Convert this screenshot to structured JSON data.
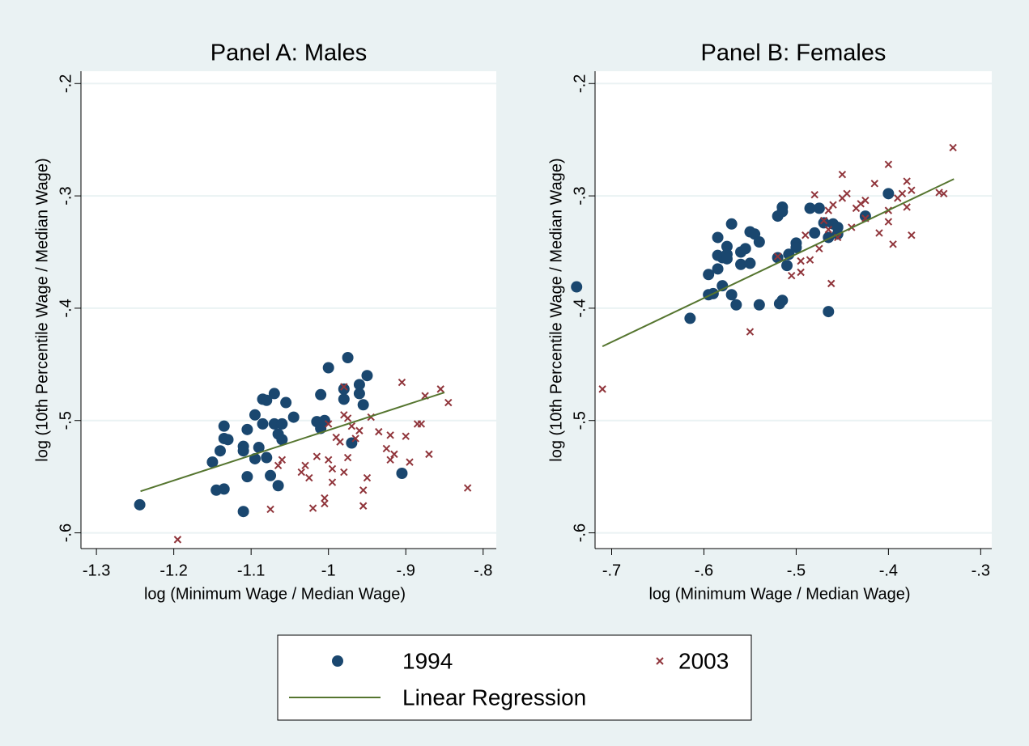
{
  "chart_data": [
    {
      "type": "scatter",
      "title": "Panel A: Males",
      "xlabel": "log (Minimum Wage / Median Wage)",
      "ylabel": "log (10th Percentile Wage / Median Wage)",
      "xlim": [
        -1.32,
        -0.783
      ],
      "ylim": [
        -0.614,
        -0.189
      ],
      "xticks": [
        -1.3,
        -1.2,
        -1.1,
        -1,
        {
          "value": -0.9,
          "label": "-.9"
        },
        {
          "value": -0.8,
          "label": "-.8"
        }
      ],
      "yticks": [
        {
          "value": -0.2,
          "label": "-.2"
        },
        {
          "value": -0.3,
          "label": "-.3"
        },
        {
          "value": -0.4,
          "label": "-.4"
        },
        {
          "value": -0.5,
          "label": "-.5"
        },
        {
          "value": -0.6,
          "label": "-.6"
        }
      ],
      "grid": true,
      "legend": "bottom",
      "series": [
        {
          "name": "1994",
          "color": "#1a476f",
          "marker": "circle",
          "x": [
            -1.244,
            -1.15,
            -1.14,
            -1.145,
            -1.135,
            -1.135,
            -1.13,
            -1.135,
            -1.11,
            -1.11,
            -1.11,
            -1.105,
            -1.105,
            -1.095,
            -1.095,
            -1.09,
            -1.085,
            -1.085,
            -1.08,
            -1.08,
            -1.075,
            -1.07,
            -1.07,
            -1.065,
            -1.065,
            -1.06,
            -1.06,
            -1.055,
            -1.045,
            -1.015,
            -1.01,
            -1.01,
            -1.005,
            -1.0,
            -0.98,
            -0.98,
            -0.975,
            -0.97,
            -0.96,
            -0.96,
            -0.955,
            -0.95,
            -0.905
          ],
          "y": [
            -0.575,
            -0.537,
            -0.527,
            -0.562,
            -0.505,
            -0.516,
            -0.517,
            -0.561,
            -0.523,
            -0.527,
            -0.581,
            -0.508,
            -0.55,
            -0.495,
            -0.534,
            -0.524,
            -0.503,
            -0.481,
            -0.482,
            -0.533,
            -0.549,
            -0.503,
            -0.476,
            -0.558,
            -0.512,
            -0.503,
            -0.517,
            -0.484,
            -0.497,
            -0.501,
            -0.507,
            -0.477,
            -0.5,
            -0.453,
            -0.472,
            -0.481,
            -0.444,
            -0.52,
            -0.476,
            -0.468,
            -0.486,
            -0.46,
            -0.547
          ]
        },
        {
          "name": "2003",
          "color": "#90353b",
          "marker": "x",
          "x": [
            -1.195,
            -1.075,
            -1.065,
            -1.06,
            -1.035,
            -1.03,
            -1.025,
            -1.02,
            -1.015,
            -1.005,
            -1.005,
            -1.0,
            -1.0,
            -0.995,
            -0.995,
            -0.99,
            -0.985,
            -0.98,
            -0.98,
            -0.975,
            -0.975,
            -0.97,
            -0.965,
            -0.96,
            -0.955,
            -0.955,
            -0.95,
            -0.945,
            -0.935,
            -0.925,
            -0.92,
            -0.92,
            -0.915,
            -0.905,
            -0.9,
            -0.895,
            -0.885,
            -0.88,
            -0.875,
            -0.87,
            -0.855,
            -0.845,
            -0.82,
            -0.98
          ],
          "y": [
            -0.606,
            -0.579,
            -0.54,
            -0.535,
            -0.546,
            -0.54,
            -0.551,
            -0.578,
            -0.532,
            -0.569,
            -0.574,
            -0.503,
            -0.535,
            -0.543,
            -0.555,
            -0.515,
            -0.519,
            -0.495,
            -0.546,
            -0.498,
            -0.533,
            -0.505,
            -0.516,
            -0.509,
            -0.576,
            -0.562,
            -0.551,
            -0.497,
            -0.51,
            -0.525,
            -0.513,
            -0.535,
            -0.53,
            -0.466,
            -0.514,
            -0.537,
            -0.503,
            -0.503,
            -0.478,
            -0.53,
            -0.472,
            -0.484,
            -0.56,
            -0.47
          ]
        },
        {
          "name": "Linear Regression",
          "color": "#55752f",
          "marker": "line",
          "x": [
            -1.243,
            -0.85
          ],
          "y": [
            -0.563,
            -0.475
          ]
        }
      ]
    },
    {
      "type": "scatter",
      "title": "Panel B: Females",
      "xlabel": "log (Minimum Wage / Median Wage)",
      "ylabel": "log (10th Percentile Wage / Median Wage)",
      "xlim": [
        -0.718,
        -0.288
      ],
      "ylim": [
        -0.614,
        -0.189
      ],
      "xticks": [
        {
          "value": -0.7,
          "label": "-.7"
        },
        {
          "value": -0.6,
          "label": "-.6"
        },
        {
          "value": -0.5,
          "label": "-.5"
        },
        {
          "value": -0.4,
          "label": "-.4"
        },
        {
          "value": -0.3,
          "label": "-.3"
        }
      ],
      "yticks": [
        {
          "value": -0.2,
          "label": "-.2"
        },
        {
          "value": -0.3,
          "label": "-.3"
        },
        {
          "value": -0.4,
          "label": "-.4"
        },
        {
          "value": -0.5,
          "label": "-.5"
        },
        {
          "value": -0.6,
          "label": "-.6"
        }
      ],
      "grid": true,
      "series": [
        {
          "color": "#1a476f",
          "marker": "circle",
          "x": [
            -0.738,
            -0.615,
            -0.595,
            -0.595,
            -0.59,
            -0.585,
            -0.585,
            -0.585,
            -0.58,
            -0.58,
            -0.575,
            -0.575,
            -0.575,
            -0.57,
            -0.57,
            -0.565,
            -0.56,
            -0.56,
            -0.555,
            -0.55,
            -0.55,
            -0.545,
            -0.54,
            -0.54,
            -0.52,
            -0.52,
            -0.518,
            -0.515,
            -0.515,
            -0.515,
            -0.51,
            -0.508,
            -0.5,
            -0.5,
            -0.485,
            -0.48,
            -0.475,
            -0.47,
            -0.465,
            -0.465,
            -0.46,
            -0.455,
            -0.455,
            -0.425,
            -0.4
          ],
          "y": [
            -0.381,
            -0.409,
            -0.37,
            -0.388,
            -0.387,
            -0.337,
            -0.353,
            -0.365,
            -0.355,
            -0.38,
            -0.345,
            -0.352,
            -0.356,
            -0.388,
            -0.325,
            -0.397,
            -0.35,
            -0.361,
            -0.347,
            -0.332,
            -0.36,
            -0.334,
            -0.341,
            -0.397,
            -0.318,
            -0.355,
            -0.396,
            -0.393,
            -0.31,
            -0.314,
            -0.362,
            -0.352,
            -0.342,
            -0.346,
            -0.311,
            -0.333,
            -0.311,
            -0.324,
            -0.337,
            -0.403,
            -0.325,
            -0.328,
            -0.334,
            -0.318,
            -0.298
          ]
        },
        {
          "color": "#90353b",
          "marker": "x",
          "x": [
            -0.71,
            -0.55,
            -0.52,
            -0.505,
            -0.495,
            -0.495,
            -0.49,
            -0.485,
            -0.48,
            -0.475,
            -0.47,
            -0.465,
            -0.465,
            -0.462,
            -0.46,
            -0.455,
            -0.45,
            -0.45,
            -0.445,
            -0.44,
            -0.435,
            -0.43,
            -0.425,
            -0.425,
            -0.415,
            -0.41,
            -0.4,
            -0.4,
            -0.395,
            -0.39,
            -0.385,
            -0.38,
            -0.38,
            -0.375,
            -0.375,
            -0.345,
            -0.34,
            -0.33,
            -0.4
          ],
          "y": [
            -0.472,
            -0.421,
            -0.354,
            -0.371,
            -0.368,
            -0.358,
            -0.335,
            -0.357,
            -0.299,
            -0.347,
            -0.322,
            -0.313,
            -0.33,
            -0.378,
            -0.308,
            -0.337,
            -0.281,
            -0.302,
            -0.298,
            -0.328,
            -0.311,
            -0.307,
            -0.32,
            -0.304,
            -0.289,
            -0.333,
            -0.323,
            -0.272,
            -0.343,
            -0.302,
            -0.298,
            -0.287,
            -0.31,
            -0.335,
            -0.295,
            -0.297,
            -0.298,
            -0.257,
            -0.313
          ]
        },
        {
          "color": "#55752f",
          "marker": "line",
          "x": [
            -0.71,
            -0.329
          ],
          "y": [
            -0.434,
            -0.285
          ]
        }
      ]
    }
  ]
}
